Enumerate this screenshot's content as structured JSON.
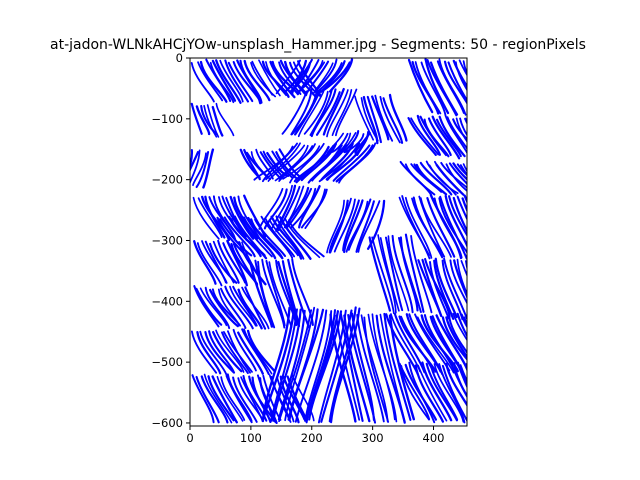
{
  "chart_data": {
    "type": "line",
    "title": "at-jadon-WLNkAHCjYOw-unsplash_Hammer.jpg - Segments: 50 - regionPixels",
    "xlabel": "",
    "ylabel": "",
    "xlim": [
      0,
      455
    ],
    "ylim": [
      -605,
      0
    ],
    "xticks": [
      0,
      100,
      200,
      300,
      400
    ],
    "yticks": [
      0,
      -100,
      -200,
      -300,
      -400,
      -500,
      -600
    ],
    "xtick_labels": [
      "0",
      "100",
      "200",
      "300",
      "400"
    ],
    "ytick_labels": [
      "0",
      "−100",
      "−200",
      "−300",
      "−400",
      "−500",
      "−600"
    ],
    "grid": false,
    "legend": "none",
    "color": "#0000ff",
    "description_regions": [
      {
        "x": [
          2,
          95
        ],
        "y": [
          -2,
          -75
        ],
        "dir": 1
      },
      {
        "x": [
          95,
          180
        ],
        "y": [
          -2,
          -65
        ],
        "dir": 1
      },
      {
        "x": [
          180,
          270
        ],
        "y": [
          -2,
          -60
        ],
        "dir": -1
      },
      {
        "x": [
          355,
          455
        ],
        "y": [
          -2,
          -95
        ],
        "dir": 1
      },
      {
        "x": [
          2,
          45
        ],
        "y": [
          -75,
          -130
        ],
        "dir": 1
      },
      {
        "x": [
          190,
          275
        ],
        "y": [
          -50,
          -130
        ],
        "dir": -1
      },
      {
        "x": [
          355,
          455
        ],
        "y": [
          -95,
          -165
        ],
        "dir": 1
      },
      {
        "x": [
          2,
          40
        ],
        "y": [
          -150,
          -215
        ],
        "dir": -1
      },
      {
        "x": [
          80,
          150
        ],
        "y": [
          -150,
          -200
        ],
        "dir": 1
      },
      {
        "x": [
          165,
          310
        ],
        "y": [
          -140,
          -205
        ],
        "dir": -1
      },
      {
        "x": [
          270,
          330
        ],
        "y": [
          -60,
          -140
        ],
        "dir": 1
      },
      {
        "x": [
          345,
          455
        ],
        "y": [
          -170,
          -225
        ],
        "dir": 1
      },
      {
        "x": [
          2,
          90
        ],
        "y": [
          -225,
          -300
        ],
        "dir": 1
      },
      {
        "x": [
          40,
          165
        ],
        "y": [
          -260,
          -330
        ],
        "dir": 1
      },
      {
        "x": [
          150,
          230
        ],
        "y": [
          -210,
          -285
        ],
        "dir": -1
      },
      {
        "x": [
          250,
          320
        ],
        "y": [
          -230,
          -320
        ],
        "dir": -1
      },
      {
        "x": [
          340,
          455
        ],
        "y": [
          -225,
          -330
        ],
        "dir": 1
      },
      {
        "x": [
          2,
          90
        ],
        "y": [
          -300,
          -375
        ],
        "dir": 1
      },
      {
        "x": [
          2,
          95
        ],
        "y": [
          -375,
          -445
        ],
        "dir": 1
      },
      {
        "x": [
          95,
          170
        ],
        "y": [
          -330,
          -445
        ],
        "dir": 1
      },
      {
        "x": [
          290,
          365
        ],
        "y": [
          -290,
          -420
        ],
        "dir": 1
      },
      {
        "x": [
          370,
          455
        ],
        "y": [
          -330,
          -430
        ],
        "dir": 1
      },
      {
        "x": [
          2,
          100
        ],
        "y": [
          -445,
          -520
        ],
        "dir": 1
      },
      {
        "x": [
          2,
          100
        ],
        "y": [
          -520,
          -600
        ],
        "dir": 1
      },
      {
        "x": [
          100,
          170
        ],
        "y": [
          -520,
          -600
        ],
        "dir": 1
      },
      {
        "x": [
          160,
          280
        ],
        "y": [
          -410,
          -600
        ],
        "dir": -1
      },
      {
        "x": [
          230,
          330
        ],
        "y": [
          -420,
          -600
        ],
        "dir": 1
      },
      {
        "x": [
          320,
          455
        ],
        "y": [
          -420,
          -520
        ],
        "dir": 1
      },
      {
        "x": [
          340,
          455
        ],
        "y": [
          -500,
          -600
        ],
        "dir": 1
      },
      {
        "x": [
          250,
          300
        ],
        "y": [
          -120,
          -160
        ],
        "dir": -1
      }
    ]
  }
}
